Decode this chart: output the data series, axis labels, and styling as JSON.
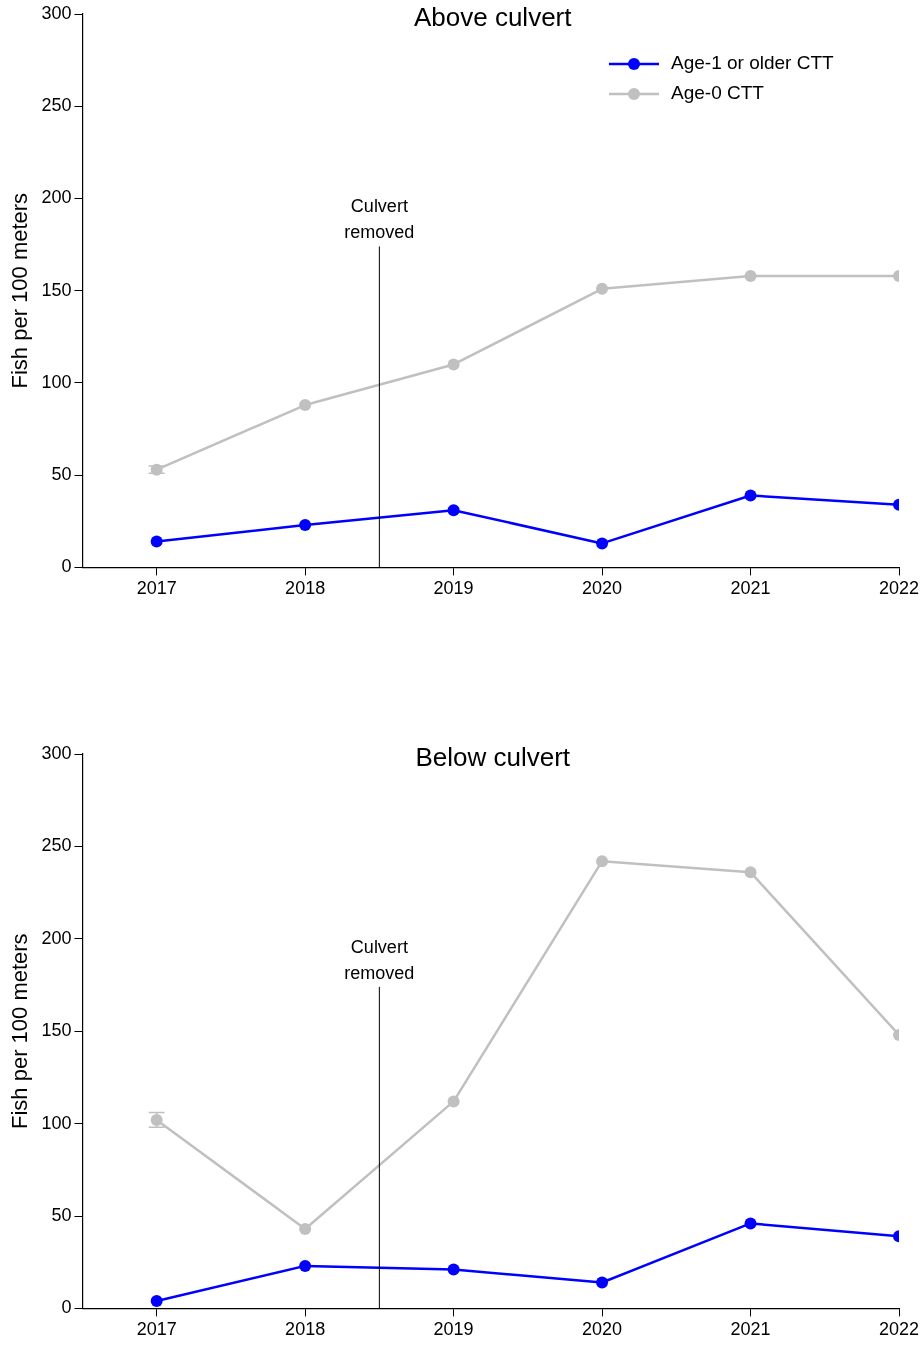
{
  "chart_data": [
    {
      "type": "line",
      "title": "Above culvert",
      "ylabel": "Fish per 100 meters",
      "x": [
        2017,
        2018,
        2019,
        2020,
        2021,
        2022
      ],
      "xlim": [
        2016.5,
        2022
      ],
      "xticks": [
        2017,
        2018,
        2019,
        2020,
        2021,
        2022
      ],
      "ylim": [
        0,
        300
      ],
      "yticks": [
        0,
        50,
        100,
        150,
        200,
        250,
        300
      ],
      "grid": false,
      "legend": "top right",
      "marker": "circle",
      "line_style": "solid",
      "series": [
        {
          "name": "Age-1 or older CTT",
          "color": "#0000ff",
          "values": [
            14,
            23,
            31,
            13,
            39,
            34
          ]
        },
        {
          "name": "Age-0 CTT",
          "color": "#c0c0c0",
          "values": [
            53,
            88,
            110,
            151,
            158,
            158
          ],
          "errors": [
            2,
            null,
            null,
            null,
            null,
            null
          ]
        }
      ],
      "ref_lines": [
        {
          "axis": "x",
          "value": 2018.5,
          "label": "Culvert removed",
          "color": "#000000"
        }
      ]
    },
    {
      "type": "line",
      "title": "Below culvert",
      "ylabel": "Fish per 100 meters",
      "x": [
        2017,
        2018,
        2019,
        2020,
        2021,
        2022
      ],
      "xlim": [
        2016.5,
        2022
      ],
      "xticks": [
        2017,
        2018,
        2019,
        2020,
        2021,
        2022
      ],
      "ylim": [
        0,
        300
      ],
      "yticks": [
        0,
        50,
        100,
        150,
        200,
        250,
        300
      ],
      "grid": false,
      "marker": "circle",
      "line_style": "solid",
      "series": [
        {
          "color": "#0000ff",
          "values": [
            4,
            23,
            21,
            14,
            46,
            39
          ]
        },
        {
          "color": "#c0c0c0",
          "values": [
            102,
            43,
            112,
            242,
            236,
            148
          ],
          "errors": [
            4,
            null,
            null,
            null,
            null,
            null
          ]
        }
      ],
      "ref_lines": [
        {
          "axis": "x",
          "value": 2018.5,
          "label": "Culvert removed",
          "color": "#000000"
        }
      ]
    }
  ]
}
